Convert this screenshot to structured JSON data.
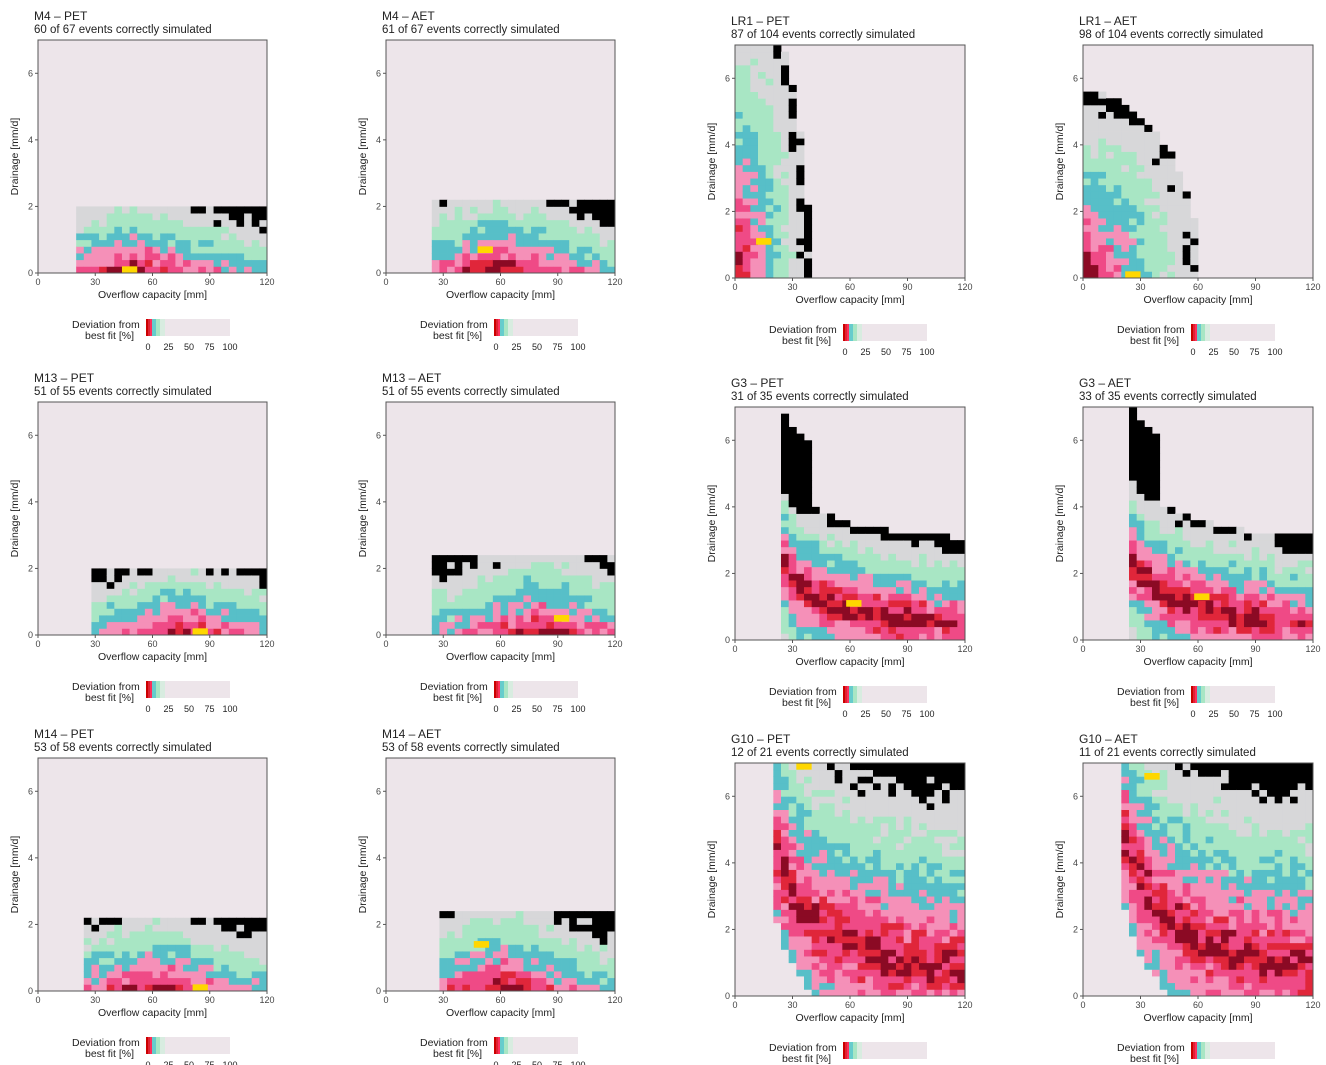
{
  "colors": {
    "background": "#ede5ea",
    "scale": [
      "#cc0000",
      "#e02233",
      "#ff2e5a",
      "#66cccc",
      "#a8e6c4",
      "#d8ece0",
      "#ede5ea"
    ],
    "levels": {
      "best": "#ffd700",
      "dark": "#8b0a24",
      "red": "#e0263a",
      "pink": "#ef4a86",
      "pinkLight": "#f590b8",
      "teal": "#57bfc8",
      "mint": "#a8e6c4",
      "grey": "#d7d7d9"
    }
  },
  "legend": {
    "title_line1": "Deviation from",
    "title_line2": "best fit [%]",
    "ticks": [
      "0",
      "25",
      "50",
      "75",
      "100"
    ]
  },
  "chart_data": [
    {
      "id": "M4-PET",
      "type": "heatmap",
      "title": "M4 – PET",
      "subtitle": "60 of 67 events correctly simulated",
      "correct": 60,
      "total": 67,
      "xlabel": "Overflow capacity [mm]",
      "ylabel": "Drainage [mm/d]",
      "xlim": [
        0,
        120
      ],
      "ylim": [
        0,
        7
      ],
      "xticks": [
        0,
        30,
        60,
        90,
        120
      ],
      "yticks": [
        0,
        2,
        4,
        6
      ],
      "pattern": "shelf",
      "params": {
        "x0": 22,
        "x1": 120,
        "ymax": 2.0,
        "cx": 50,
        "best": [
          48,
          0
        ]
      }
    },
    {
      "id": "M4-AET",
      "type": "heatmap",
      "title": "M4 – AET",
      "subtitle": "61 of 67 events correctly simulated",
      "correct": 61,
      "total": 67,
      "xlabel": "Overflow capacity [mm]",
      "ylabel": "Drainage [mm/d]",
      "xlim": [
        0,
        120
      ],
      "ylim": [
        0,
        7
      ],
      "xticks": [
        0,
        30,
        60,
        90,
        120
      ],
      "yticks": [
        0,
        2,
        4,
        6
      ],
      "pattern": "shelf",
      "params": {
        "x0": 25,
        "x1": 120,
        "ymax": 2.2,
        "cx": 58,
        "best": [
          52,
          0.6
        ]
      }
    },
    {
      "id": "LR1-PET",
      "type": "heatmap",
      "title": "LR1 – PET",
      "subtitle": "87 of 104 events correctly simulated",
      "correct": 87,
      "total": 104,
      "xlabel": "Overflow capacity [mm]",
      "ylabel": "Drainage [mm/d]",
      "xlim": [
        0,
        120
      ],
      "ylim": [
        0,
        7
      ],
      "xticks": [
        0,
        30,
        60,
        90,
        120
      ],
      "yticks": [
        0,
        2,
        4,
        6
      ],
      "pattern": "corner",
      "params": {
        "xs": 14,
        "ys": 0.8,
        "best": [
          15,
          1.0
        ]
      }
    },
    {
      "id": "LR1-AET",
      "type": "heatmap",
      "title": "LR1 – AET",
      "subtitle": "98 of 104 events correctly simulated",
      "correct": 98,
      "total": 104,
      "xlabel": "Overflow capacity [mm]",
      "ylabel": "Drainage [mm/d]",
      "xlim": [
        0,
        120
      ],
      "ylim": [
        0,
        7
      ],
      "xticks": [
        0,
        30,
        60,
        90,
        120
      ],
      "yticks": [
        0,
        2,
        4,
        6
      ],
      "pattern": "corner",
      "params": {
        "xs": 22,
        "ys": 0.5,
        "best": [
          26,
          0.0
        ]
      }
    },
    {
      "id": "M13-PET",
      "type": "heatmap",
      "title": "M13 – PET",
      "subtitle": "51 of 55 events correctly simulated",
      "correct": 51,
      "total": 55,
      "xlabel": "Overflow capacity [mm]",
      "ylabel": "Drainage [mm/d]",
      "xlim": [
        0,
        120
      ],
      "ylim": [
        0,
        7
      ],
      "xticks": [
        0,
        30,
        60,
        90,
        120
      ],
      "yticks": [
        0,
        2,
        4,
        6
      ],
      "pattern": "shelf",
      "params": {
        "x0": 28,
        "x1": 120,
        "ymax": 1.9,
        "cx": 75,
        "best": [
          85,
          0
        ]
      }
    },
    {
      "id": "M13-AET",
      "type": "heatmap",
      "title": "M13 – AET",
      "subtitle": "51 of 55 events correctly simulated",
      "correct": 51,
      "total": 55,
      "xlabel": "Overflow capacity [mm]",
      "ylabel": "Drainage [mm/d]",
      "xlim": [
        0,
        120
      ],
      "ylim": [
        0,
        7
      ],
      "xticks": [
        0,
        30,
        60,
        90,
        120
      ],
      "yticks": [
        0,
        2,
        4,
        6
      ],
      "pattern": "shelf",
      "params": {
        "x0": 25,
        "x1": 120,
        "ymax": 2.3,
        "cx": 80,
        "best": [
          92,
          0.4
        ]
      }
    },
    {
      "id": "G3-PET",
      "type": "heatmap",
      "title": "G3 – PET",
      "subtitle": "31 of 35 events correctly simulated",
      "correct": 31,
      "total": 35,
      "xlabel": "Overflow capacity [mm]",
      "ylabel": "Drainage [mm/d]",
      "xlim": [
        0,
        120
      ],
      "ylim": [
        0,
        7
      ],
      "xticks": [
        0,
        30,
        60,
        90,
        120
      ],
      "yticks": [
        0,
        2,
        4,
        6
      ],
      "pattern": "lshape",
      "params": {
        "k": 55,
        "w": 0.9,
        "ext": 7,
        "best": [
          62,
          1.0
        ]
      }
    },
    {
      "id": "G3-AET",
      "type": "heatmap",
      "title": "G3 – AET",
      "subtitle": "33 of 35 events correctly simulated",
      "correct": 33,
      "total": 35,
      "xlabel": "Overflow capacity [mm]",
      "ylabel": "Drainage [mm/d]",
      "xlim": [
        0,
        120
      ],
      "ylim": [
        0,
        7
      ],
      "xticks": [
        0,
        30,
        60,
        90,
        120
      ],
      "yticks": [
        0,
        2,
        4,
        6
      ],
      "pattern": "lshape",
      "params": {
        "k": 60,
        "w": 0.9,
        "ext": 7,
        "best": [
          62,
          1.2
        ]
      }
    },
    {
      "id": "M14-PET",
      "type": "heatmap",
      "title": "M14 – PET",
      "subtitle": "53 of 58 events correctly simulated",
      "correct": 53,
      "total": 58,
      "xlabel": "Overflow capacity [mm]",
      "ylabel": "Drainage [mm/d]",
      "xlim": [
        0,
        120
      ],
      "ylim": [
        0,
        7
      ],
      "xticks": [
        0,
        30,
        60,
        90,
        120
      ],
      "yticks": [
        0,
        2,
        4,
        6
      ],
      "pattern": "shelf",
      "params": {
        "x0": 25,
        "x1": 120,
        "ymax": 2.1,
        "cx": 60,
        "best": [
          85,
          0
        ]
      }
    },
    {
      "id": "M14-AET",
      "type": "heatmap",
      "title": "M14 – AET",
      "subtitle": "53 of 58 events correctly simulated",
      "correct": 53,
      "total": 58,
      "xlabel": "Overflow capacity [mm]",
      "ylabel": "Drainage [mm/d]",
      "xlim": [
        0,
        120
      ],
      "ylim": [
        0,
        7
      ],
      "xticks": [
        0,
        30,
        60,
        90,
        120
      ],
      "yticks": [
        0,
        2,
        4,
        6
      ],
      "pattern": "shelf",
      "params": {
        "x0": 30,
        "x1": 120,
        "ymax": 2.4,
        "cx": 60,
        "best": [
          50,
          1.3
        ]
      }
    },
    {
      "id": "G10-PET",
      "type": "heatmap",
      "title": "G10 – PET",
      "subtitle": "12 of 21 events correctly simulated",
      "correct": 12,
      "total": 21,
      "xlabel": "Overflow capacity [mm]",
      "ylabel": "Drainage [mm/d]",
      "xlim": [
        0,
        120
      ],
      "ylim": [
        0,
        7
      ],
      "xticks": [
        0,
        30,
        60,
        90,
        120
      ],
      "yticks": [
        0,
        2,
        4,
        6
      ],
      "pattern": "hyper",
      "params": {
        "k": 95,
        "best": [
          36,
          6.8
        ]
      }
    },
    {
      "id": "G10-AET",
      "type": "heatmap",
      "title": "G10 – AET",
      "subtitle": "11 of 21 events correctly simulated",
      "correct": 11,
      "total": 21,
      "xlabel": "Overflow capacity [mm]",
      "ylabel": "Drainage [mm/d]",
      "xlim": [
        0,
        120
      ],
      "ylim": [
        0,
        7
      ],
      "xticks": [
        0,
        30,
        60,
        90,
        120
      ],
      "yticks": [
        0,
        2,
        4,
        6
      ],
      "pattern": "hyper",
      "params": {
        "k": 105,
        "best": [
          36,
          6.5
        ]
      }
    }
  ]
}
